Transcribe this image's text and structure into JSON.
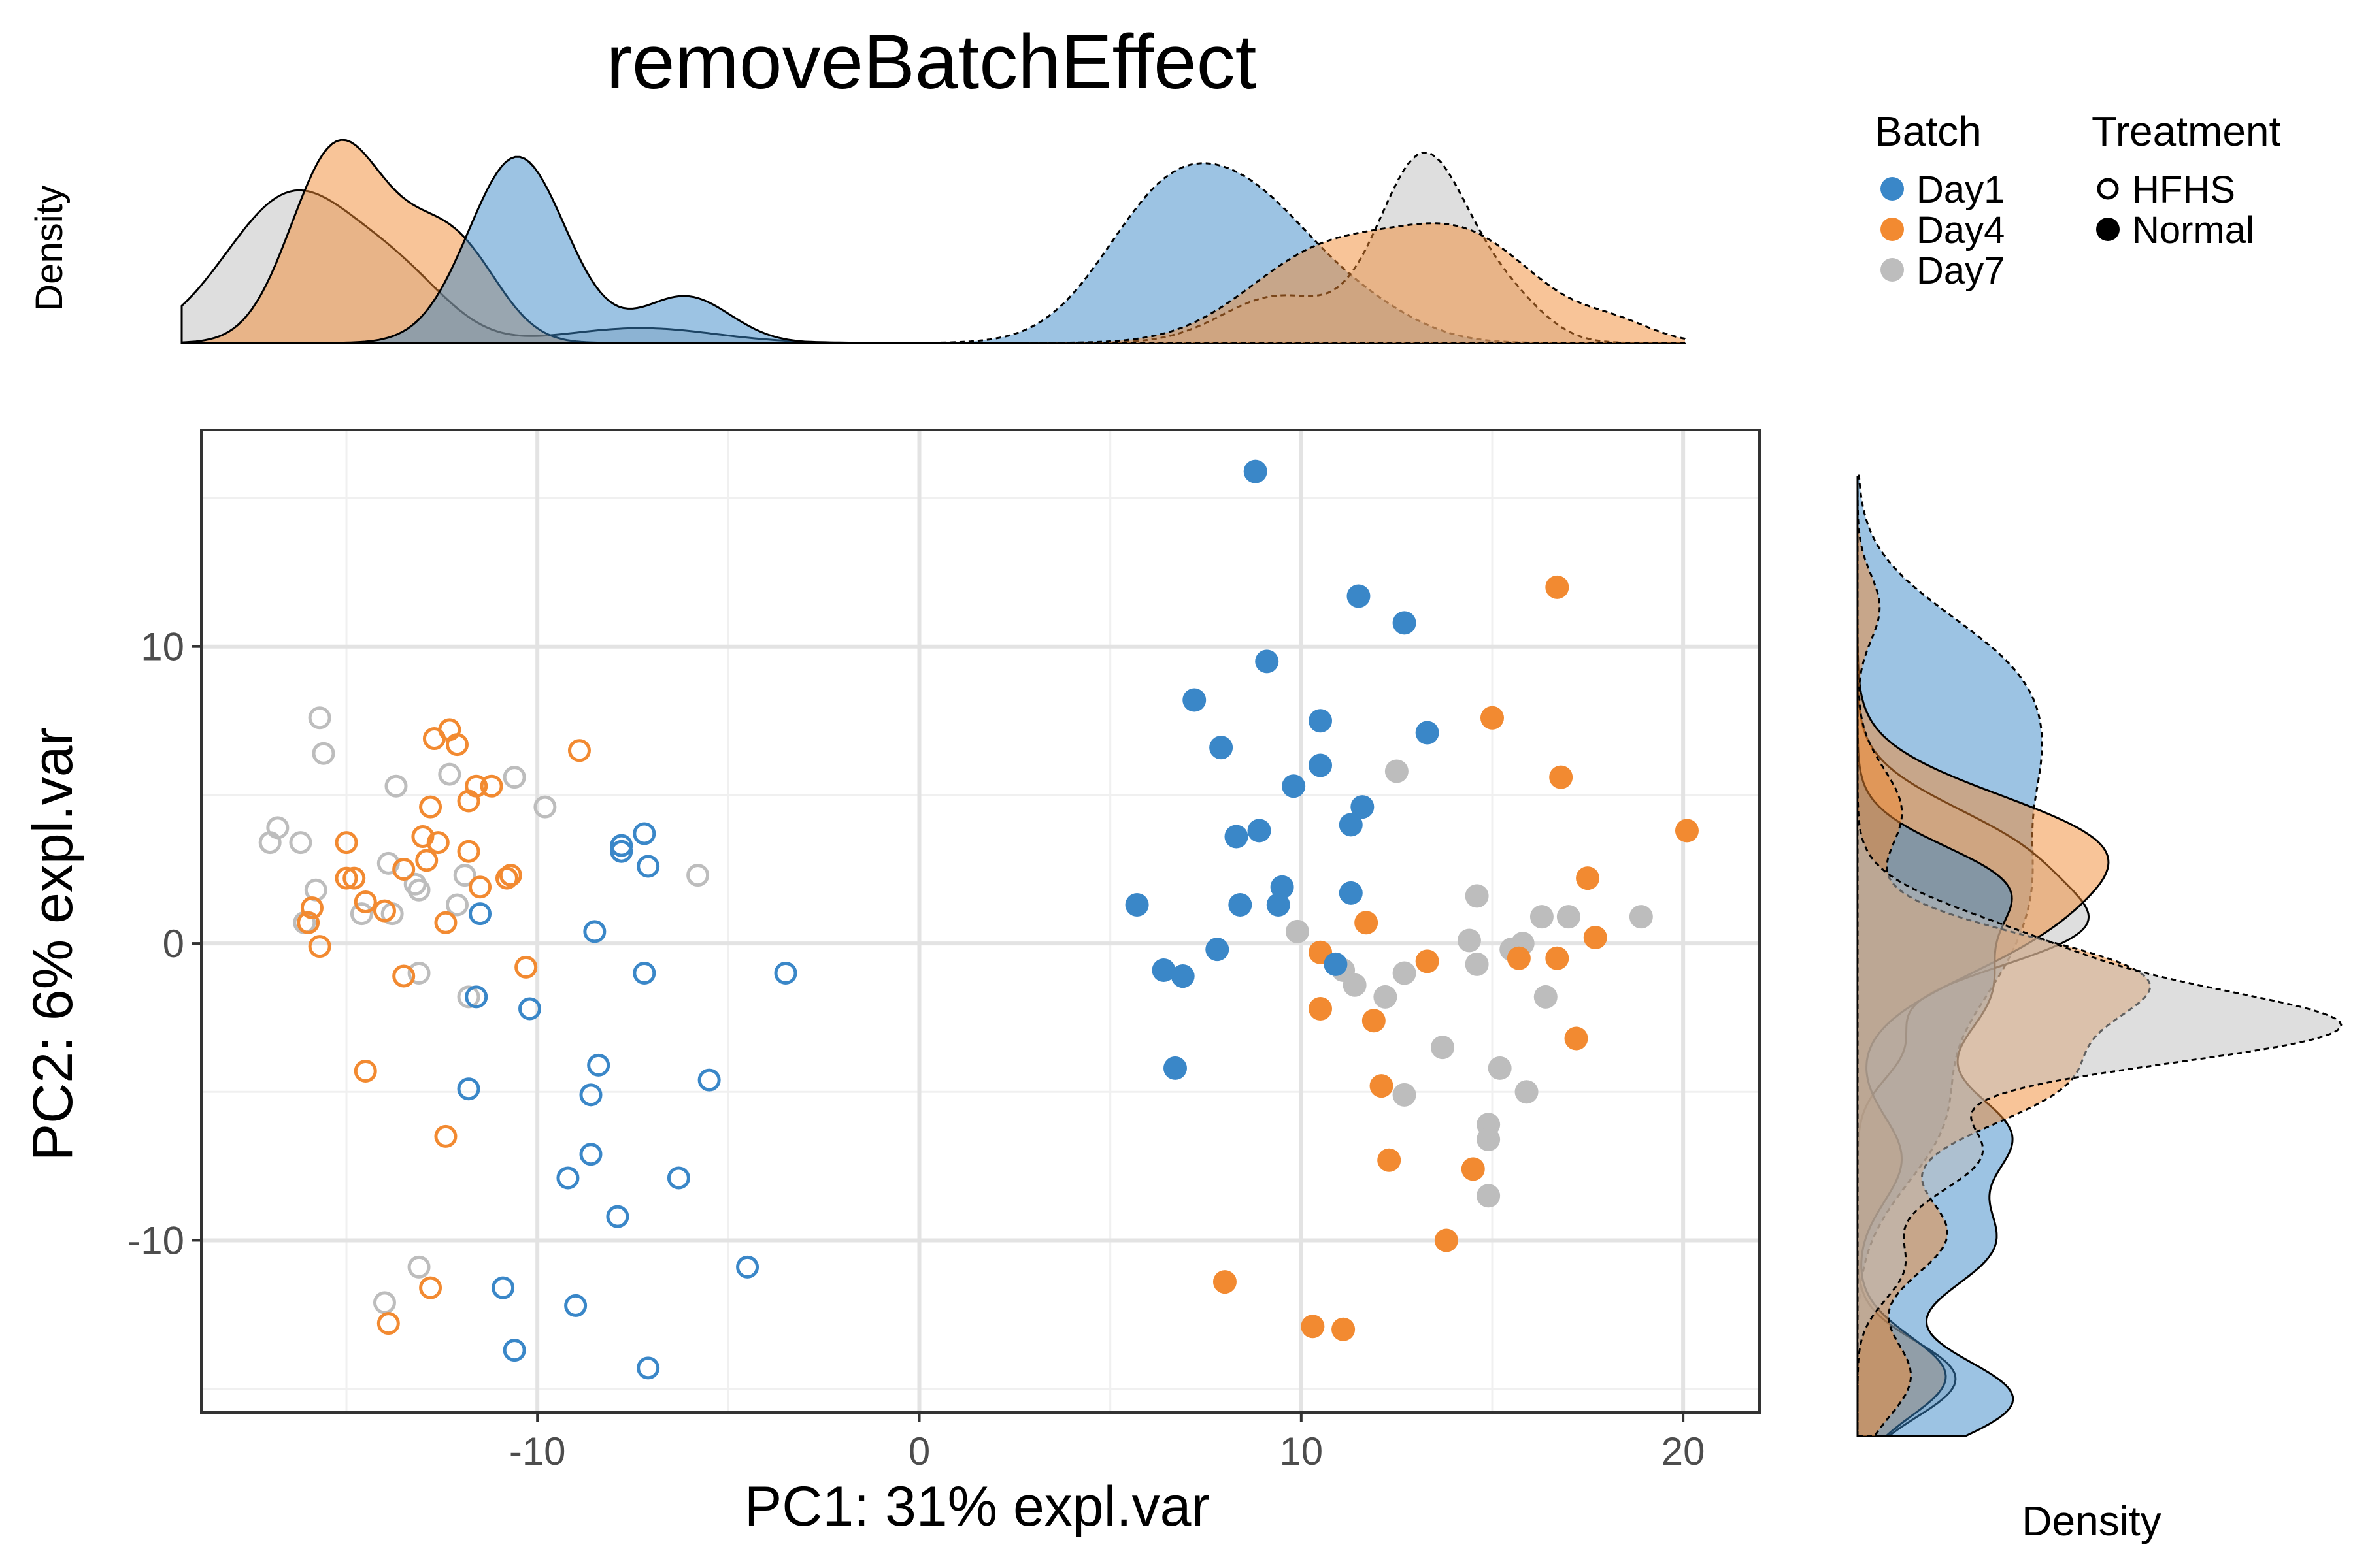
{
  "colors": {
    "Day1": "#3a87c8",
    "Day4": "#f28a31",
    "Day7": "#bdbdbd",
    "grid_major": "#e3e3e3",
    "grid_minor": "#f0f0f0",
    "panel_border": "#333333"
  },
  "chart_data": {
    "type": "scatter",
    "title": "removeBatchEffect",
    "xlabel": "PC1: 31% expl.var",
    "ylabel": "PC2: 6% expl.var",
    "xlim": [
      -18.8,
      22.0
    ],
    "ylim": [
      -15.8,
      17.3
    ],
    "xticks": [
      -10,
      0,
      10,
      20
    ],
    "xtick_labels": [
      "-10",
      "0",
      "10",
      "20"
    ],
    "yticks": [
      -10,
      0,
      10
    ],
    "ytick_labels": [
      "-10",
      "0",
      "10"
    ],
    "grid": true,
    "legend_position": "top-right",
    "legend": {
      "batch_title": "Batch",
      "batch_items": [
        "Day1",
        "Day4",
        "Day7"
      ],
      "treatment_title": "Treatment",
      "treatment_items": [
        "HFHS",
        "Normal"
      ]
    },
    "top_density": {
      "ylabel": "Density",
      "series": [
        {
          "batch": "Day1",
          "treatment": "HFHS",
          "peaks": [
            [
              -9.8,
              1.0,
              1.3
            ],
            [
              -5.3,
              0.25,
              1.2
            ]
          ]
        },
        {
          "batch": "Day4",
          "treatment": "HFHS",
          "peaks": [
            [
              -14.7,
              1.0,
              1.2
            ],
            [
              -12.2,
              0.5,
              1.3
            ],
            [
              -11.0,
              0.18,
              1.0
            ]
          ]
        },
        {
          "batch": "Day7",
          "treatment": "HFHS",
          "peaks": [
            [
              -15.8,
              0.8,
              1.8
            ],
            [
              -12.8,
              0.25,
              1.3
            ],
            [
              -6.5,
              0.08,
              2.0
            ]
          ]
        },
        {
          "batch": "Day1",
          "treatment": "Normal",
          "peaks": [
            [
              7.8,
              0.82,
              1.8
            ],
            [
              10.4,
              0.45,
              1.5
            ],
            [
              12.8,
              0.18,
              1.5
            ]
          ]
        },
        {
          "batch": "Day4",
          "treatment": "Normal",
          "peaks": [
            [
              11.7,
              0.45,
              2.0
            ],
            [
              15.6,
              0.55,
              2.0
            ],
            [
              19.7,
              0.08,
              1.0
            ]
          ]
        },
        {
          "batch": "Day7",
          "treatment": "Normal",
          "peaks": [
            [
              10.6,
              0.25,
              1.5
            ],
            [
              14.5,
              1.0,
              1.2
            ],
            [
              16.8,
              0.2,
              1.0
            ]
          ]
        }
      ]
    },
    "right_density": {
      "xlabel": "Density",
      "series": [
        {
          "batch": "Day1",
          "treatment": "HFHS",
          "peaks": [
            [
              -12.5,
              0.35,
              1.3
            ],
            [
              -7.8,
              0.3,
              1.5
            ],
            [
              -4.5,
              0.3,
              1.3
            ],
            [
              0.0,
              0.3,
              2.0
            ],
            [
              3.2,
              0.25,
              1.2
            ]
          ]
        },
        {
          "batch": "Day4",
          "treatment": "HFHS",
          "peaks": [
            [
              4.3,
              0.5,
              1.6
            ],
            [
              1.5,
              0.3,
              1.5
            ],
            [
              -5.2,
              0.1,
              1.3
            ],
            [
              -11.8,
              0.2,
              1.2
            ]
          ]
        },
        {
          "batch": "Day7",
          "treatment": "HFHS",
          "peaks": [
            [
              4.0,
              0.35,
              1.5
            ],
            [
              1.6,
              0.4,
              1.2
            ],
            [
              -1.8,
              0.1,
              1.0
            ],
            [
              -11.5,
              0.15,
              1.0
            ],
            [
              -12.5,
              0.1,
              1.0
            ]
          ]
        },
        {
          "batch": "Day1",
          "treatment": "Normal",
          "peaks": [
            [
              9.5,
              0.3,
              2.0
            ],
            [
              6.5,
              0.25,
              1.8
            ],
            [
              3.5,
              0.25,
              1.8
            ],
            [
              0.5,
              0.25,
              2.0
            ],
            [
              -4.0,
              0.18,
              2.0
            ]
          ]
        },
        {
          "batch": "Day4",
          "treatment": "Normal",
          "peaks": [
            [
              0.3,
              0.6,
              1.3
            ],
            [
              -2.8,
              0.45,
              1.5
            ],
            [
              -7.5,
              0.2,
              1.3
            ],
            [
              -11.8,
              0.12,
              1.2
            ],
            [
              5.3,
              0.1,
              1.3
            ],
            [
              11.5,
              0.05,
              1.0
            ]
          ]
        },
        {
          "batch": "Day7",
          "treatment": "Normal",
          "peaks": [
            [
              -1.3,
              1.0,
              1.1
            ],
            [
              1.0,
              0.4,
              1.3
            ],
            [
              -5.0,
              0.28,
              1.3
            ],
            [
              -8.5,
              0.1,
              1.0
            ]
          ]
        }
      ]
    },
    "series": [
      {
        "batch": "Day1",
        "treatment": "HFHS",
        "points": [
          [
            -11.5,
            1.0
          ],
          [
            -7.8,
            3.3
          ],
          [
            -7.8,
            3.1
          ],
          [
            -7.2,
            3.7
          ],
          [
            -7.1,
            2.6
          ],
          [
            -8.5,
            0.4
          ],
          [
            -3.5,
            -1.0
          ],
          [
            -7.2,
            -1.0
          ],
          [
            -11.6,
            -1.8
          ],
          [
            -10.2,
            -2.2
          ],
          [
            -8.4,
            -4.1
          ],
          [
            -11.8,
            -4.9
          ],
          [
            -8.6,
            -5.1
          ],
          [
            -5.5,
            -4.6
          ],
          [
            -8.6,
            -7.1
          ],
          [
            -9.2,
            -7.9
          ],
          [
            -6.3,
            -7.9
          ],
          [
            -7.9,
            -9.2
          ],
          [
            -4.5,
            -10.9
          ],
          [
            -10.9,
            -11.6
          ],
          [
            -9.0,
            -12.2
          ],
          [
            -10.6,
            -13.7
          ],
          [
            -7.1,
            -14.3
          ]
        ]
      },
      {
        "batch": "Day4",
        "treatment": "HFHS",
        "points": [
          [
            -12.3,
            7.2
          ],
          [
            -12.1,
            6.7
          ],
          [
            -12.7,
            6.9
          ],
          [
            -8.9,
            6.5
          ],
          [
            -11.2,
            5.3
          ],
          [
            -11.6,
            5.3
          ],
          [
            -11.8,
            4.8
          ],
          [
            -12.8,
            4.6
          ],
          [
            -13.0,
            3.6
          ],
          [
            -12.6,
            3.4
          ],
          [
            -11.8,
            3.1
          ],
          [
            -13.5,
            2.5
          ],
          [
            -12.9,
            2.8
          ],
          [
            -10.7,
            2.3
          ],
          [
            -10.8,
            2.2
          ],
          [
            -11.5,
            1.9
          ],
          [
            -15.0,
            3.4
          ],
          [
            -15.0,
            2.2
          ],
          [
            -14.8,
            2.2
          ],
          [
            -14.5,
            1.4
          ],
          [
            -15.9,
            1.2
          ],
          [
            -14.0,
            1.1
          ],
          [
            -16.0,
            0.7
          ],
          [
            -12.4,
            0.7
          ],
          [
            -15.7,
            -0.1
          ],
          [
            -10.3,
            -0.8
          ],
          [
            -13.5,
            -1.1
          ],
          [
            -14.5,
            -4.3
          ],
          [
            -12.4,
            -6.5
          ],
          [
            -12.8,
            -11.6
          ],
          [
            -13.9,
            -12.8
          ]
        ]
      },
      {
        "batch": "Day7",
        "treatment": "HFHS",
        "points": [
          [
            -15.7,
            7.6
          ],
          [
            -15.6,
            6.4
          ],
          [
            -13.7,
            5.3
          ],
          [
            -12.3,
            5.7
          ],
          [
            -10.6,
            5.6
          ],
          [
            -9.8,
            4.6
          ],
          [
            -16.8,
            3.9
          ],
          [
            -17.0,
            3.4
          ],
          [
            -16.2,
            3.4
          ],
          [
            -13.9,
            2.7
          ],
          [
            -11.9,
            2.3
          ],
          [
            -13.2,
            2.0
          ],
          [
            -13.1,
            1.8
          ],
          [
            -15.8,
            1.8
          ],
          [
            -5.8,
            2.3
          ],
          [
            -12.1,
            1.3
          ],
          [
            -14.6,
            1.0
          ],
          [
            -16.1,
            0.7
          ],
          [
            -13.8,
            1.0
          ],
          [
            -13.1,
            -1.0
          ],
          [
            -11.8,
            -1.8
          ],
          [
            -13.1,
            -10.9
          ],
          [
            -14.0,
            -12.1
          ]
        ]
      },
      {
        "batch": "Day1",
        "treatment": "Normal",
        "points": [
          [
            8.8,
            15.9
          ],
          [
            11.5,
            11.7
          ],
          [
            12.7,
            10.8
          ],
          [
            9.1,
            9.5
          ],
          [
            7.2,
            8.2
          ],
          [
            10.5,
            7.5
          ],
          [
            7.9,
            6.6
          ],
          [
            13.3,
            7.1
          ],
          [
            10.5,
            6.0
          ],
          [
            9.8,
            5.3
          ],
          [
            11.6,
            4.6
          ],
          [
            11.3,
            4.0
          ],
          [
            8.3,
            3.6
          ],
          [
            8.9,
            3.8
          ],
          [
            9.5,
            1.9
          ],
          [
            11.3,
            1.7
          ],
          [
            5.7,
            1.3
          ],
          [
            8.4,
            1.3
          ],
          [
            9.4,
            1.3
          ],
          [
            7.8,
            -0.2
          ],
          [
            6.4,
            -0.9
          ],
          [
            6.9,
            -1.1
          ],
          [
            10.9,
            -0.7
          ],
          [
            6.7,
            -4.2
          ]
        ]
      },
      {
        "batch": "Day4",
        "treatment": "Normal",
        "points": [
          [
            16.7,
            12.0
          ],
          [
            15.0,
            7.6
          ],
          [
            16.8,
            5.6
          ],
          [
            20.1,
            3.8
          ],
          [
            17.5,
            2.2
          ],
          [
            11.7,
            0.7
          ],
          [
            17.7,
            0.2
          ],
          [
            10.5,
            -0.3
          ],
          [
            13.3,
            -0.6
          ],
          [
            15.7,
            -0.5
          ],
          [
            16.7,
            -0.5
          ],
          [
            10.5,
            -2.2
          ],
          [
            11.9,
            -2.6
          ],
          [
            17.2,
            -3.2
          ],
          [
            12.1,
            -4.8
          ],
          [
            12.3,
            -7.3
          ],
          [
            14.5,
            -7.6
          ],
          [
            13.8,
            -10.0
          ],
          [
            8.0,
            -11.4
          ],
          [
            10.3,
            -12.9
          ],
          [
            11.1,
            -13.0
          ]
        ]
      },
      {
        "batch": "Day7",
        "treatment": "Normal",
        "points": [
          [
            12.5,
            5.8
          ],
          [
            18.9,
            0.9
          ],
          [
            14.6,
            1.6
          ],
          [
            16.3,
            0.9
          ],
          [
            17.0,
            0.9
          ],
          [
            9.9,
            0.4
          ],
          [
            14.4,
            0.1
          ],
          [
            15.5,
            -0.2
          ],
          [
            15.8,
            0.0
          ],
          [
            11.1,
            -0.9
          ],
          [
            14.6,
            -0.7
          ],
          [
            11.4,
            -1.4
          ],
          [
            12.7,
            -1.0
          ],
          [
            16.4,
            -1.8
          ],
          [
            12.2,
            -1.8
          ],
          [
            13.7,
            -3.5
          ],
          [
            15.2,
            -4.2
          ],
          [
            12.7,
            -5.1
          ],
          [
            15.9,
            -5.0
          ],
          [
            14.9,
            -6.1
          ],
          [
            14.9,
            -6.6
          ],
          [
            14.9,
            -8.5
          ]
        ]
      }
    ]
  }
}
